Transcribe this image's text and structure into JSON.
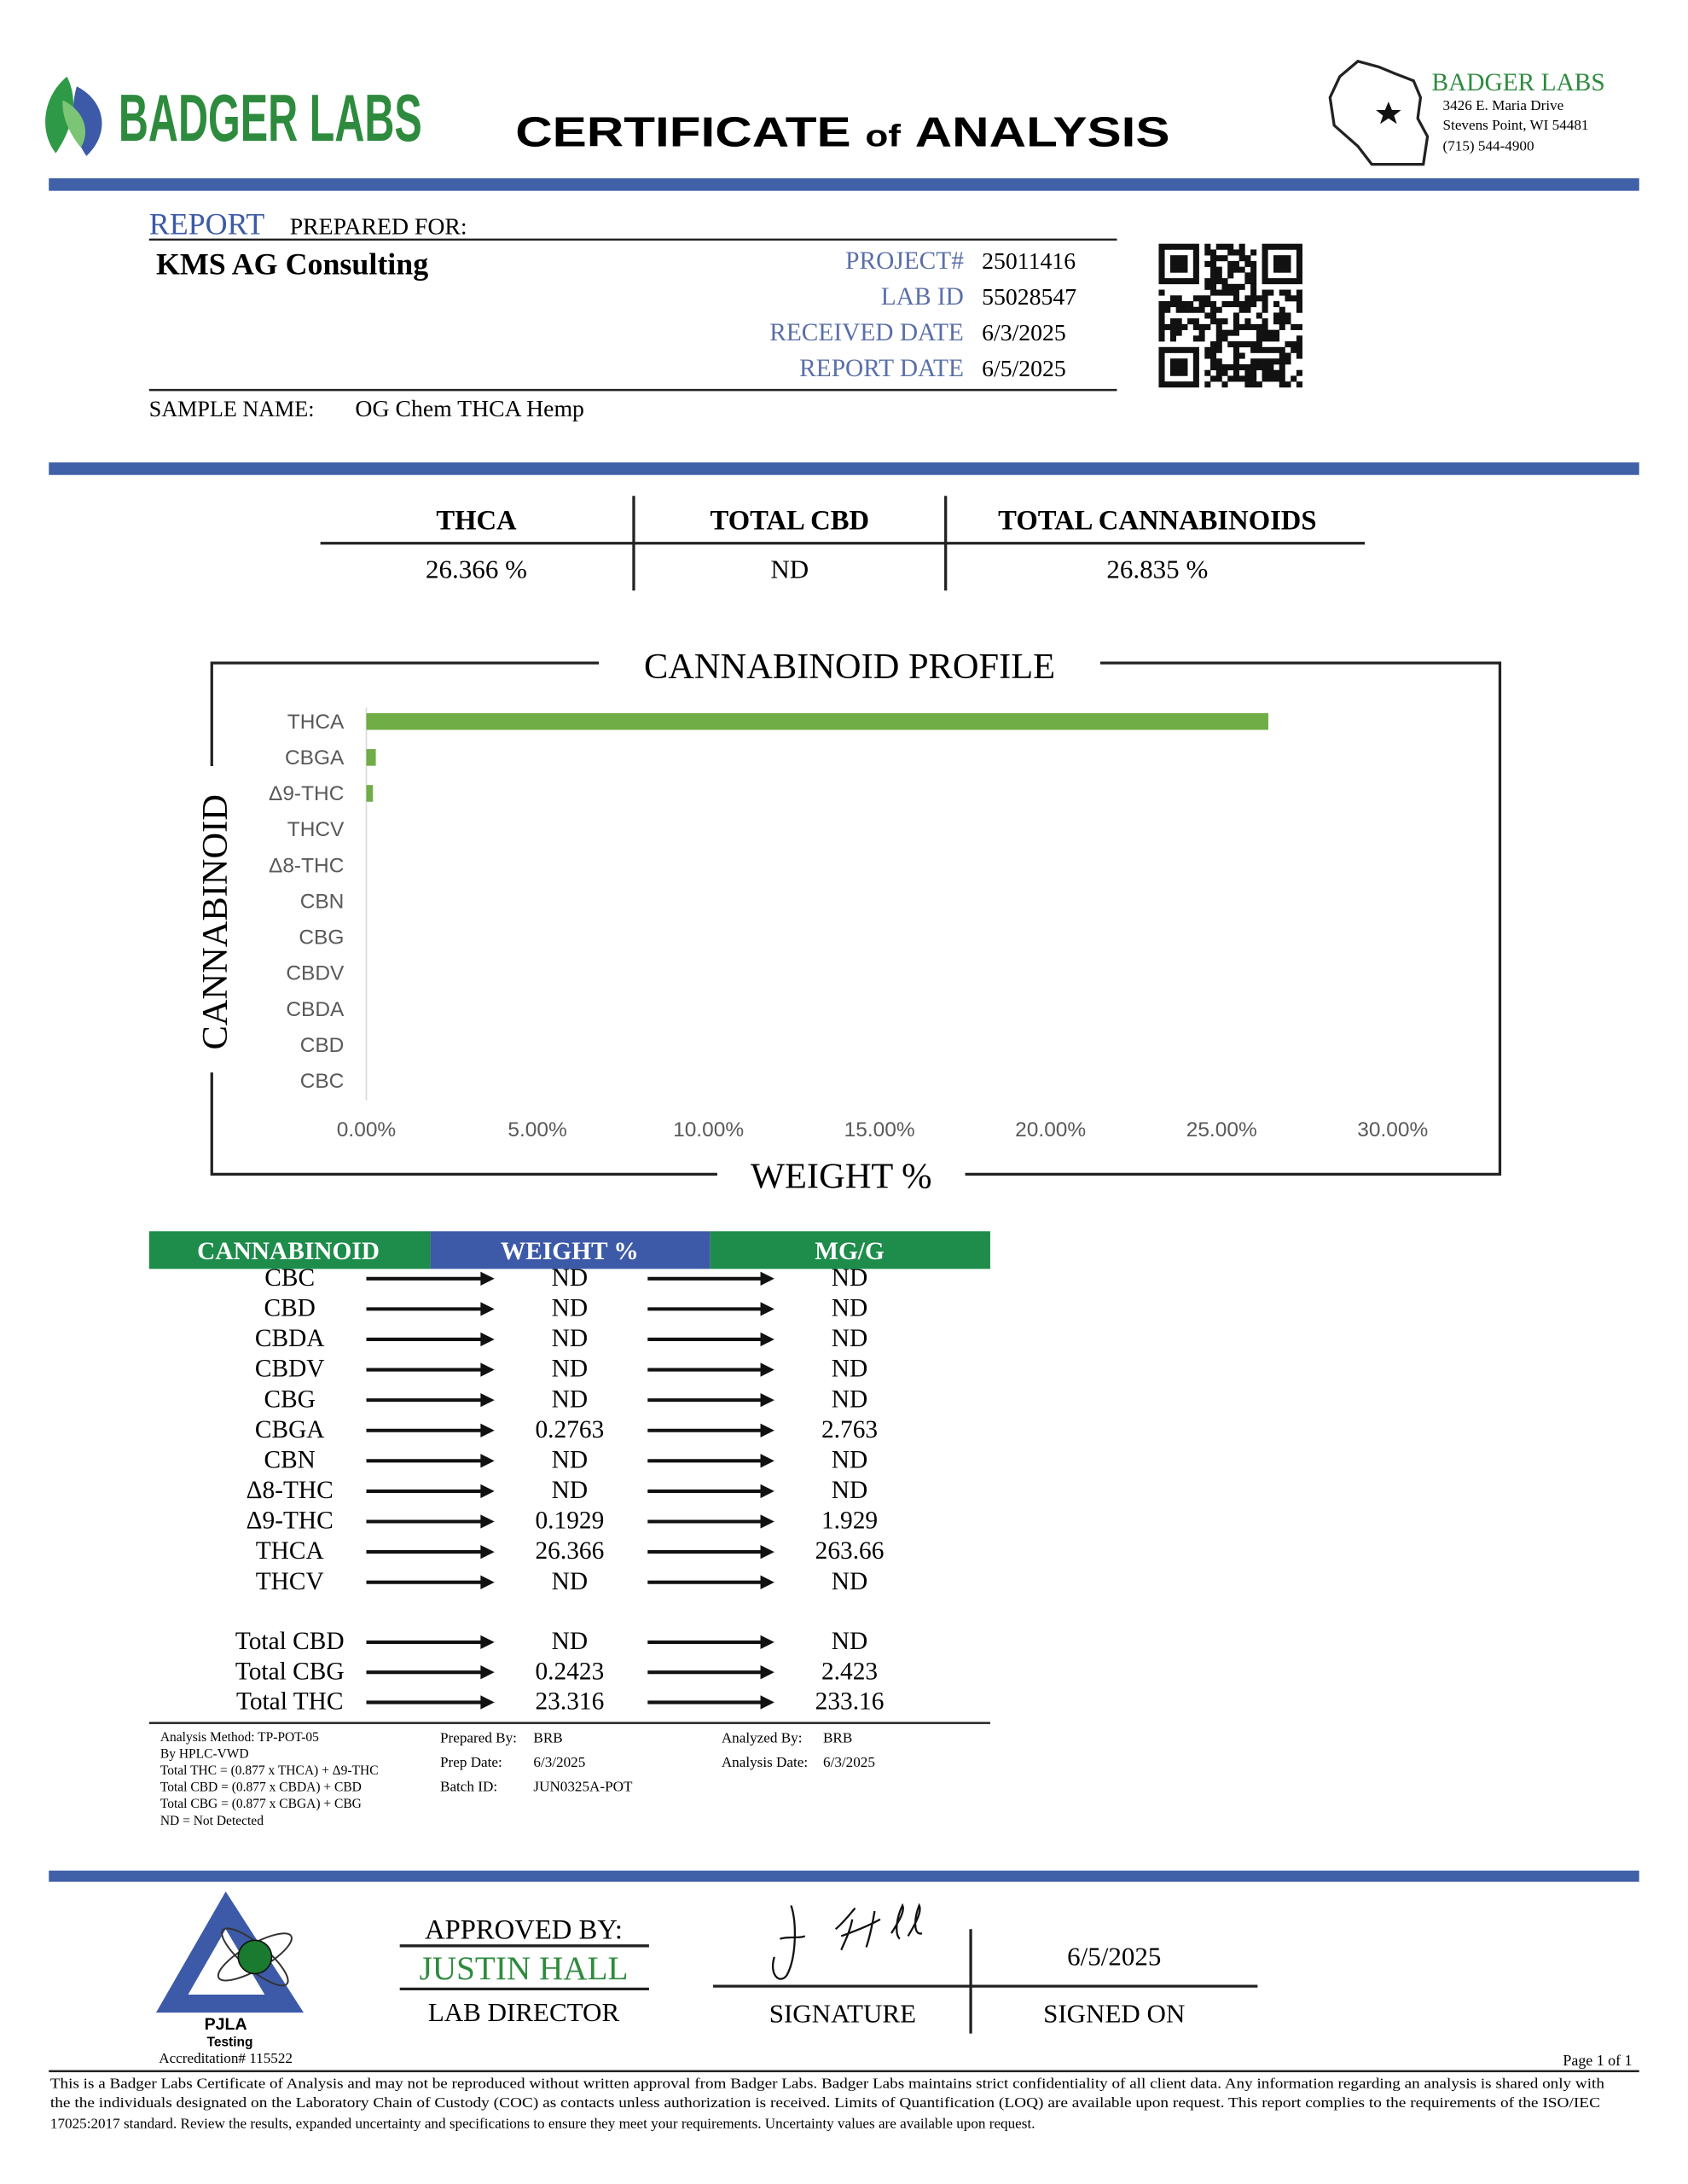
{
  "header": {
    "logo_text": "BADGER LABS",
    "title": [
      "CERTIFICATE",
      "of",
      "ANALYSIS"
    ],
    "address": {
      "name": "BADGER LABS",
      "lines": [
        "3426 E. Maria Drive",
        "Stevens Point, WI 54481",
        "(715) 544-4900"
      ]
    }
  },
  "report": {
    "report_label": "REPORT",
    "prepared_for_label": "PREPARED FOR:",
    "client": "KMS AG Consulting",
    "fields": [
      {
        "label": "PROJECT#",
        "value": "25011416"
      },
      {
        "label": "LAB ID",
        "value": "55028547"
      },
      {
        "label": "RECEIVED DATE",
        "value": "6/3/2025"
      },
      {
        "label": "REPORT DATE",
        "value": "6/5/2025"
      }
    ],
    "sample_name_label": "SAMPLE NAME:",
    "sample_name": "OG Chem THCA Hemp"
  },
  "summary": {
    "headers": [
      "THCA",
      "TOTAL CBD",
      "TOTAL CANNABINOIDS"
    ],
    "values": [
      "26.366 %",
      "ND",
      "26.835 %"
    ]
  },
  "chart_data": {
    "type": "bar",
    "orientation": "horizontal",
    "title": "CANNABINOID PROFILE",
    "y_label": "CANNABINOID",
    "x_label": "WEIGHT %",
    "categories": [
      "THCA",
      "CBGA",
      "Δ9-THC",
      "THCV",
      "Δ8-THC",
      "CBN",
      "CBG",
      "CBDV",
      "CBDA",
      "CBD",
      "CBC"
    ],
    "values": [
      26.366,
      0.2763,
      0.1929,
      0,
      0,
      0,
      0,
      0,
      0,
      0,
      0
    ],
    "color": "#70ad47",
    "xlim": [
      0,
      30
    ],
    "xticks": [
      {
        "value": 0,
        "label": "0.00%"
      },
      {
        "value": 5,
        "label": "5.00%"
      },
      {
        "value": 10,
        "label": "10.00%"
      },
      {
        "value": 15,
        "label": "15.00%"
      },
      {
        "value": 20,
        "label": "20.00%"
      },
      {
        "value": 25,
        "label": "25.00%"
      },
      {
        "value": 30,
        "label": "30.00%"
      }
    ]
  },
  "table": {
    "headers": [
      "CANNABINOID",
      "WEIGHT %",
      "MG/G"
    ],
    "rows": [
      [
        "CBC",
        "ND",
        "ND"
      ],
      [
        "CBD",
        "ND",
        "ND"
      ],
      [
        "CBDA",
        "ND",
        "ND"
      ],
      [
        "CBDV",
        "ND",
        "ND"
      ],
      [
        "CBG",
        "ND",
        "ND"
      ],
      [
        "CBGA",
        "0.2763",
        "2.763"
      ],
      [
        "CBN",
        "ND",
        "ND"
      ],
      [
        "Δ8-THC",
        "ND",
        "ND"
      ],
      [
        "Δ9-THC",
        "0.1929",
        "1.929"
      ],
      [
        "THCA",
        "26.366",
        "263.66"
      ],
      [
        "THCV",
        "ND",
        "ND"
      ]
    ],
    "totals": [
      [
        "Total CBD",
        "ND",
        "ND"
      ],
      [
        "Total CBG",
        "0.2423",
        "2.423"
      ],
      [
        "Total THC",
        "23.316",
        "233.16"
      ]
    ]
  },
  "notes": [
    "Analysis Method: TP-POT-05",
    "By HPLC-VWD",
    "Total THC = (0.877 x  THCA) + Δ9-THC",
    "Total CBD = (0.877 x  CBDA) + CBD",
    "Total CBG = (0.877 x  CBGA) + CBG",
    "ND = Not Detected"
  ],
  "prep": [
    {
      "label": "Prepared By:",
      "value": "BRB"
    },
    {
      "label": "Prep Date:",
      "value": "6/3/2025"
    },
    {
      "label": "Batch ID:",
      "value": "JUN0325A-POT"
    }
  ],
  "analysis": [
    {
      "label": "Analyzed By:",
      "value": "BRB"
    },
    {
      "label": "Analysis Date:",
      "value": "6/3/2025"
    }
  ],
  "footer": {
    "accreditation": {
      "name": "PJLA",
      "type": "Testing",
      "number": "Accreditation# 115522"
    },
    "approved_by_label": "APPROVED BY:",
    "approver": "JUSTIN HALL",
    "role": "LAB DIRECTOR",
    "signature_label": "SIGNATURE",
    "signed_date": "6/5/2025",
    "signed_on_label": "SIGNED ON",
    "page": "Page 1 of 1",
    "disclaimer": [
      "This is a Badger Labs Certificate of Analysis and may not be reproduced without written approval from Badger Labs. Badger Labs maintains strict confidentiality of all client data. Any information regarding an analysis is shared only with",
      "the the individuals designated on the Laboratory Chain of Custody (COC) as contacts unless authorization is received. Limits of Quantification (LOQ) are available upon request. This report complies to the requirements of the ISO/IEC",
      "17025:2017 standard. Review the results, expanded uncertainty and specifications to ensure they meet your requirements. Uncertainty values are available upon request."
    ]
  }
}
